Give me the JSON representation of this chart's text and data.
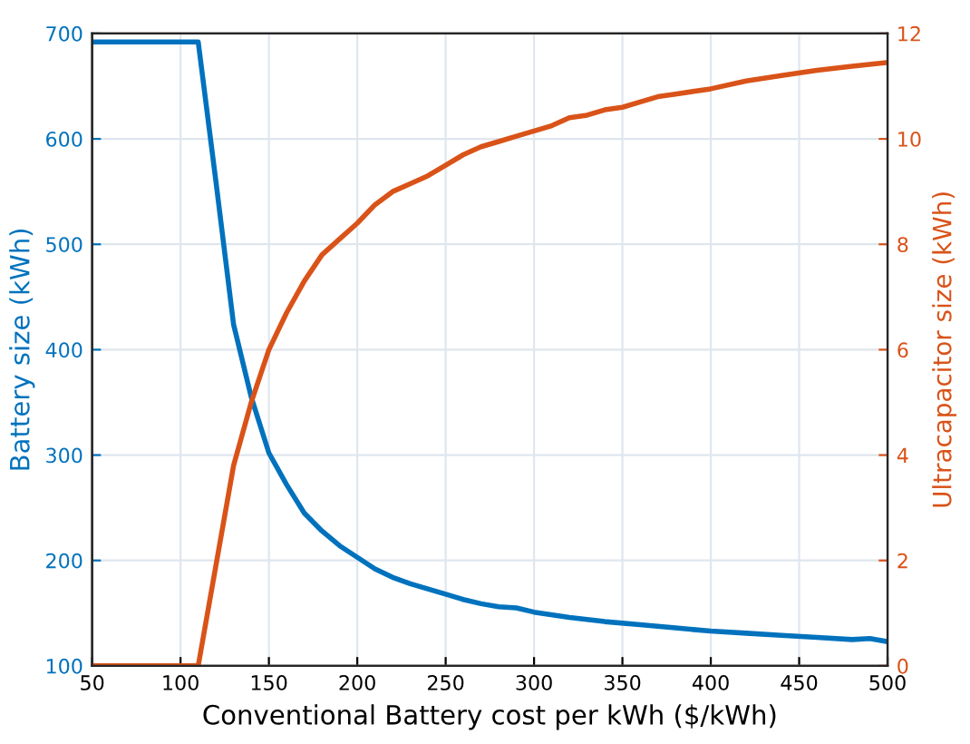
{
  "chart_data": {
    "type": "line",
    "xlabel": "Conventional Battery cost per kWh ($/kWh)",
    "ylabel": "Battery size (kWh)",
    "y2label": "Ultracapacitor size (kWh)",
    "xlim": [
      50,
      500
    ],
    "xticks": [
      50,
      100,
      150,
      200,
      250,
      300,
      350,
      400,
      450,
      500
    ],
    "ylim": [
      100,
      700
    ],
    "yticks": [
      100,
      200,
      300,
      400,
      500,
      600,
      700
    ],
    "y2lim": [
      0,
      12
    ],
    "y2ticks": [
      0,
      2,
      4,
      6,
      8,
      10,
      12
    ],
    "grid": true,
    "legend": false,
    "marker": "none",
    "line_style": "solid",
    "series": [
      {
        "color": "#0072bd",
        "x": [
          50,
          110,
          120,
          130,
          140,
          150,
          160,
          170,
          180,
          190,
          200,
          210,
          220,
          230,
          240,
          250,
          260,
          270,
          280,
          290,
          300,
          320,
          340,
          360,
          380,
          400,
          420,
          440,
          460,
          480,
          490,
          500
        ],
        "values": [
          692,
          692,
          560,
          424,
          355,
          302,
          272,
          245,
          228,
          214,
          203,
          192,
          184,
          178,
          173,
          168,
          163,
          159,
          156,
          155,
          151,
          146,
          142,
          139,
          136,
          133,
          131,
          129,
          127,
          125,
          126,
          123
        ]
      },
      {
        "color": "#d95319",
        "axis": "y2",
        "x": [
          50,
          110,
          120,
          130,
          140,
          150,
          160,
          170,
          180,
          190,
          200,
          210,
          220,
          230,
          240,
          250,
          260,
          270,
          280,
          290,
          300,
          310,
          320,
          330,
          340,
          350,
          360,
          370,
          380,
          400,
          420,
          440,
          460,
          480,
          500
        ],
        "values": [
          0,
          0,
          1.9,
          3.8,
          5.0,
          6.0,
          6.7,
          7.3,
          7.8,
          8.1,
          8.4,
          8.75,
          9.0,
          9.15,
          9.3,
          9.5,
          9.7,
          9.85,
          9.95,
          10.05,
          10.15,
          10.25,
          10.4,
          10.45,
          10.55,
          10.6,
          10.7,
          10.8,
          10.85,
          10.95,
          11.1,
          11.2,
          11.3,
          11.38,
          11.45
        ]
      }
    ]
  }
}
